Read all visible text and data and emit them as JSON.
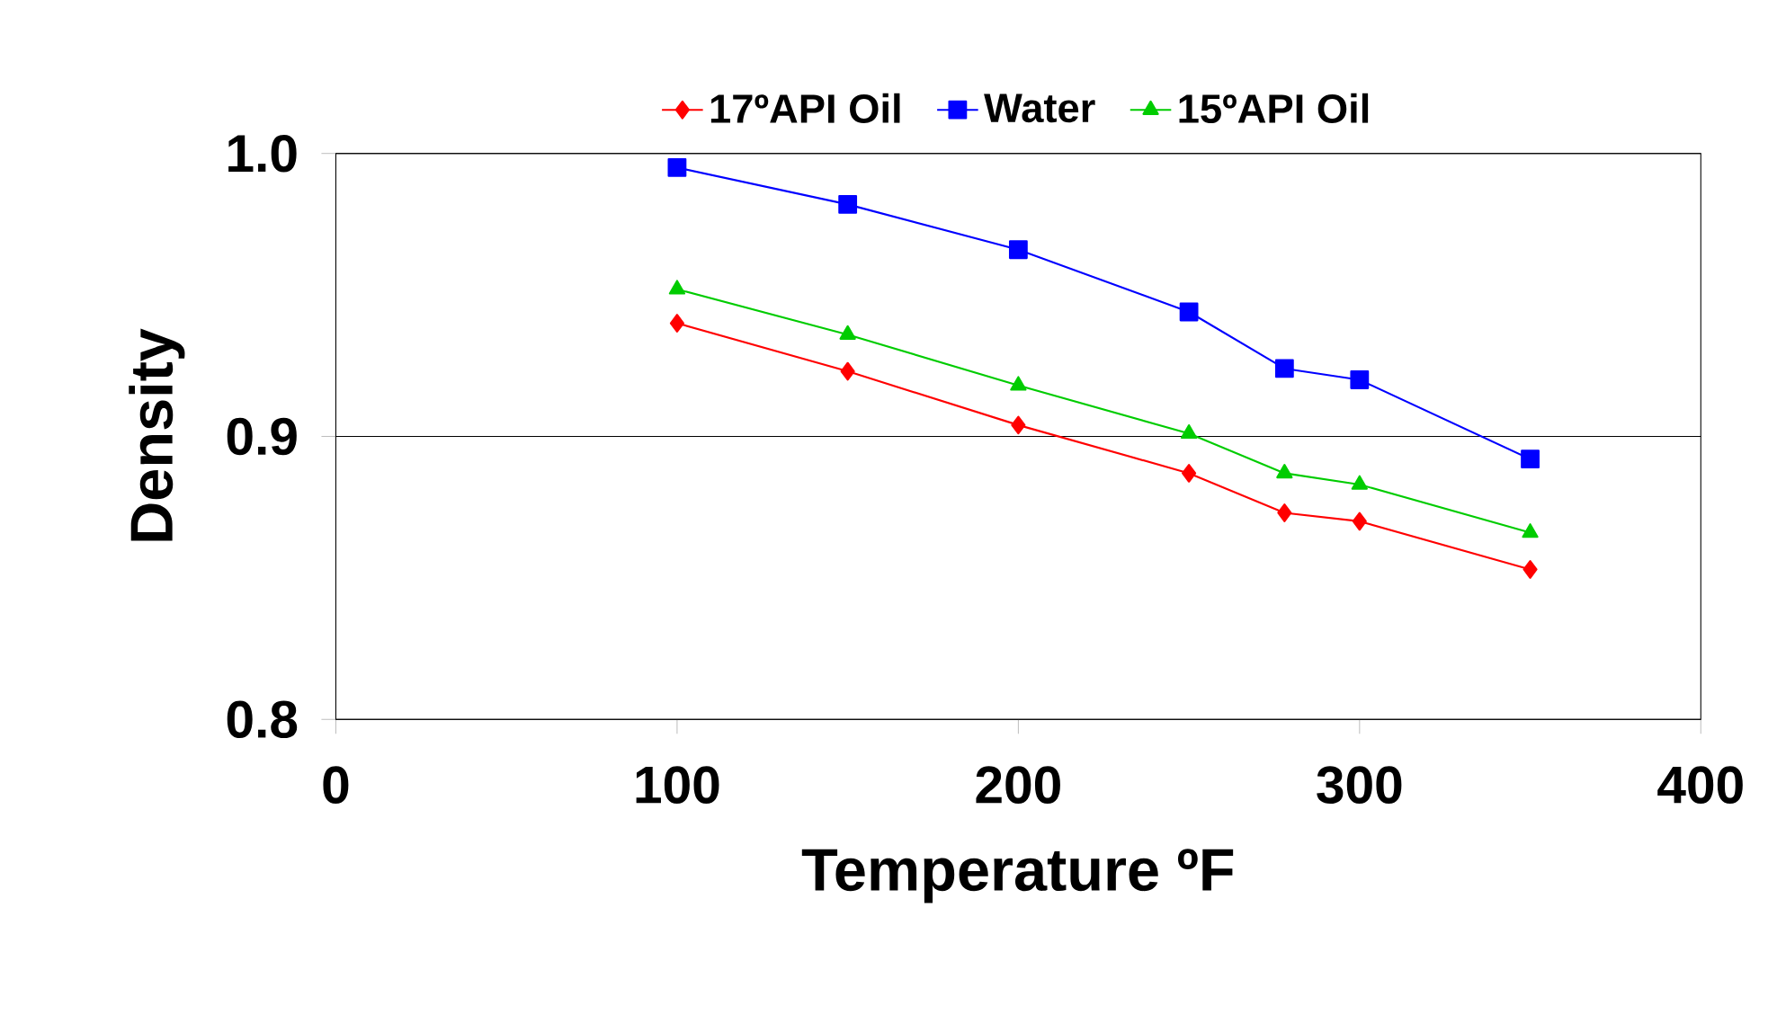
{
  "chart_data": {
    "type": "line",
    "xlabel": "Temperature ºF",
    "ylabel": "Density",
    "x": [
      100,
      150,
      200,
      250,
      278,
      300,
      350
    ],
    "series": [
      {
        "name": "17ºAPI Oil",
        "color": "#ff0000",
        "marker": "diamond",
        "values": [
          0.94,
          0.923,
          0.904,
          0.887,
          0.873,
          0.87,
          0.853
        ]
      },
      {
        "name": "Water",
        "color": "#0000ff",
        "marker": "square",
        "values": [
          0.995,
          0.982,
          0.966,
          0.944,
          0.924,
          0.92,
          0.892
        ]
      },
      {
        "name": "15ºAPI Oil",
        "color": "#00cc00",
        "marker": "triangle",
        "values": [
          0.952,
          0.936,
          0.918,
          0.901,
          0.887,
          0.883,
          0.866
        ]
      }
    ],
    "xlim": [
      0,
      400
    ],
    "ylim": [
      0.8,
      1.0
    ],
    "xticks": [
      0,
      100,
      200,
      300,
      400
    ],
    "yticks": [
      {
        "value": 0.8,
        "label": "0.8"
      },
      {
        "value": 0.9,
        "label": "0.9"
      },
      {
        "value": 1.0,
        "label": "1.0"
      }
    ],
    "grid": "y",
    "legend": "top",
    "line_style": "solid"
  }
}
